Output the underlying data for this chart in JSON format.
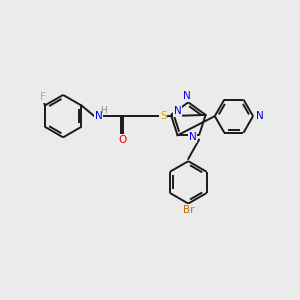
{
  "background_color": "#ebebeb",
  "bond_color": "#1a1a1a",
  "atom_colors": {
    "F": "#ee82ee",
    "N": "#0000ee",
    "O": "#ee0000",
    "S": "#ccaa00",
    "Br": "#cc6600",
    "C": "#1a1a1a",
    "H": "#888888"
  },
  "figsize": [
    3.0,
    3.0
  ],
  "dpi": 100,
  "lw": 1.4
}
